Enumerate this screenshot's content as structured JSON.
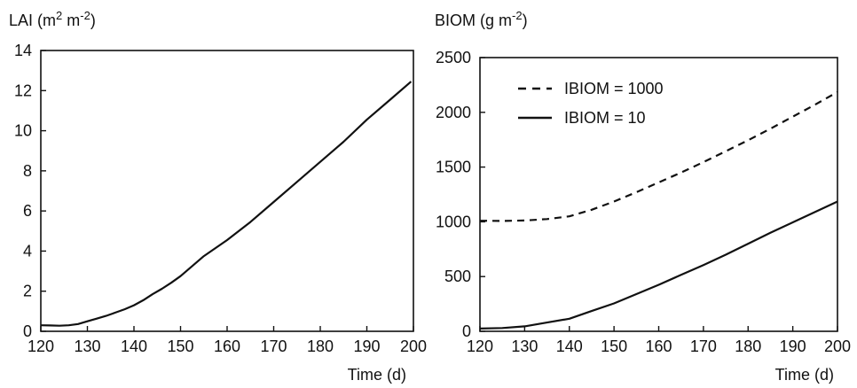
{
  "chart_data": [
    {
      "type": "line",
      "ylabel": {
        "text": "LAI (m",
        "sup1": "2",
        "mid": " m",
        "sup2": "-2",
        "end": ")"
      },
      "xlabel": "Time (d)",
      "xlim": [
        120,
        200
      ],
      "ylim": [
        0,
        14
      ],
      "x_ticks": [
        120,
        130,
        140,
        150,
        160,
        170,
        180,
        190,
        200
      ],
      "y_ticks": [
        0,
        2,
        4,
        6,
        8,
        10,
        12,
        14
      ],
      "grid": false,
      "legend": null,
      "series": [
        {
          "style": "solid",
          "color": "#111111",
          "points": [
            [
              120,
              0.3
            ],
            [
              122,
              0.29
            ],
            [
              124,
              0.28
            ],
            [
              126,
              0.3
            ],
            [
              128,
              0.36
            ],
            [
              130,
              0.5
            ],
            [
              132,
              0.63
            ],
            [
              134,
              0.77
            ],
            [
              136,
              0.93
            ],
            [
              138,
              1.1
            ],
            [
              140,
              1.3
            ],
            [
              142,
              1.55
            ],
            [
              144,
              1.85
            ],
            [
              146,
              2.12
            ],
            [
              148,
              2.42
            ],
            [
              150,
              2.75
            ],
            [
              155,
              3.75
            ],
            [
              160,
              4.55
            ],
            [
              165,
              5.45
            ],
            [
              170,
              6.45
            ],
            [
              175,
              7.45
            ],
            [
              180,
              8.45
            ],
            [
              185,
              9.45
            ],
            [
              190,
              10.55
            ],
            [
              195,
              11.55
            ],
            [
              199.5,
              12.45
            ]
          ]
        }
      ]
    },
    {
      "type": "line",
      "ylabel": {
        "text": "BIOM (g m",
        "sup1": "-2",
        "mid": "",
        "sup2": "",
        "end": ")"
      },
      "xlabel": "Time (d)",
      "xlim": [
        120,
        200
      ],
      "ylim": [
        0,
        2500
      ],
      "x_ticks": [
        120,
        130,
        140,
        150,
        160,
        170,
        180,
        190,
        200
      ],
      "y_ticks": [
        0,
        500,
        1000,
        1500,
        2000,
        2500
      ],
      "grid": false,
      "legend": "top-left",
      "series": [
        {
          "name": "IBIOM = 1000",
          "style": "dashed",
          "color": "#111111",
          "points": [
            [
              120,
              1010
            ],
            [
              125,
              1008
            ],
            [
              130,
              1012
            ],
            [
              135,
              1025
            ],
            [
              140,
              1050
            ],
            [
              145,
              1110
            ],
            [
              150,
              1185
            ],
            [
              155,
              1270
            ],
            [
              160,
              1360
            ],
            [
              165,
              1450
            ],
            [
              170,
              1545
            ],
            [
              175,
              1645
            ],
            [
              180,
              1745
            ],
            [
              185,
              1850
            ],
            [
              190,
              1960
            ],
            [
              195,
              2070
            ],
            [
              200,
              2185
            ]
          ]
        },
        {
          "name": "IBIOM = 10",
          "style": "solid",
          "color": "#111111",
          "points": [
            [
              120,
              25
            ],
            [
              125,
              30
            ],
            [
              130,
              45
            ],
            [
              135,
              80
            ],
            [
              140,
              115
            ],
            [
              145,
              185
            ],
            [
              150,
              255
            ],
            [
              155,
              340
            ],
            [
              160,
              425
            ],
            [
              165,
              515
            ],
            [
              170,
              605
            ],
            [
              175,
              700
            ],
            [
              180,
              800
            ],
            [
              185,
              900
            ],
            [
              190,
              995
            ],
            [
              195,
              1090
            ],
            [
              200,
              1185
            ]
          ]
        }
      ]
    }
  ]
}
